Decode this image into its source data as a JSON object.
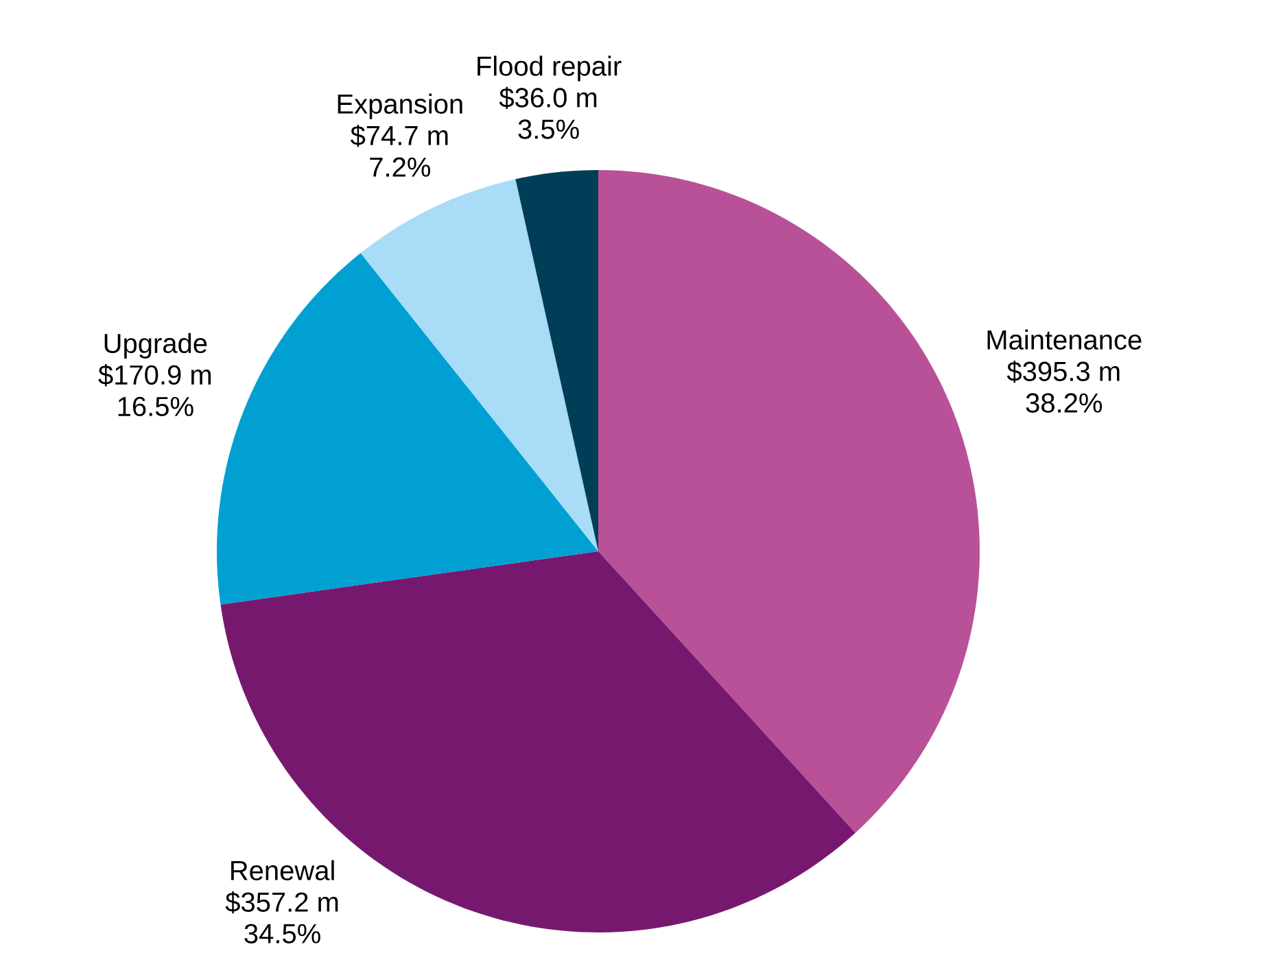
{
  "chart_data": {
    "type": "pie",
    "categories": [
      "Maintenance",
      "Renewal",
      "Upgrade",
      "Expansion",
      "Flood repair"
    ],
    "values": [
      395.3,
      357.2,
      170.9,
      74.7,
      36.0
    ],
    "colors": [
      "#b85198",
      "#76196e",
      "#00a0d2",
      "#a8dcf7",
      "#003e57"
    ],
    "value_labels": [
      "$395.3 m",
      "$357.2 m",
      "$170.9 m",
      "$74.7 m",
      "$36.0 m"
    ],
    "annotations": [
      "38.2%",
      "34.5%",
      "16.5%",
      "7.2%",
      "3.5%"
    ]
  }
}
